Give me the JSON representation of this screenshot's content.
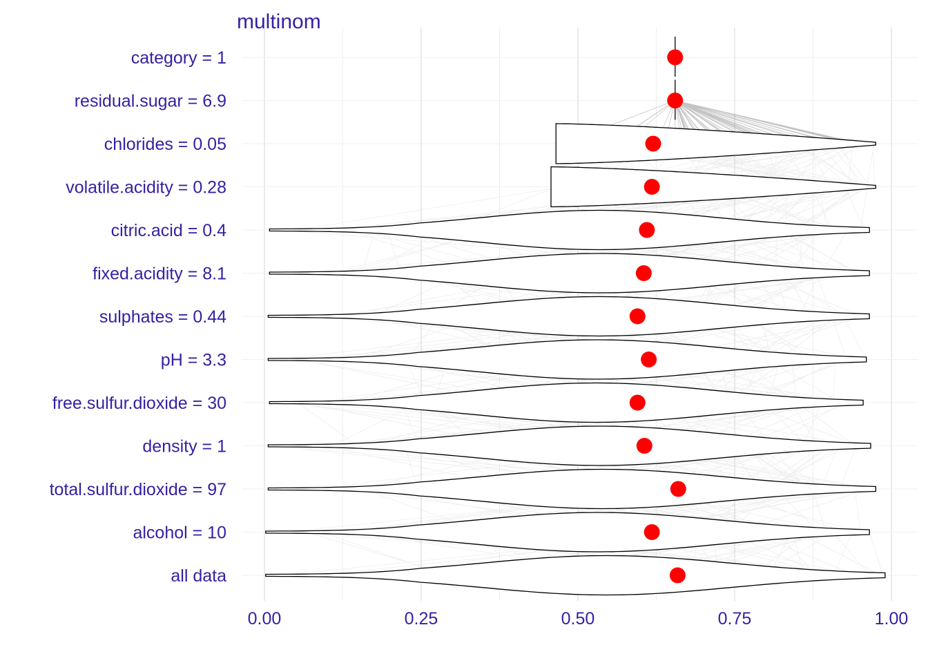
{
  "chart_data": {
    "type": "violin",
    "title": "multinom",
    "xlabel": "",
    "ylabel": "",
    "xlim": [
      0,
      1
    ],
    "x_ticks": [
      "0.00",
      "0.25",
      "0.50",
      "0.75",
      "1.00"
    ],
    "grid": true,
    "colors": {
      "text": "#371ea3",
      "point": "#ff0000",
      "outline": "#000000",
      "grid": "#e6e6e6"
    },
    "rows": [
      {
        "label": "category = 1",
        "mean": 0.655,
        "range": [
          0.655,
          0.655
        ]
      },
      {
        "label": "residual.sugar = 6.9",
        "mean": 0.655,
        "range": [
          0.655,
          0.655
        ]
      },
      {
        "label": "chlorides = 0.05",
        "mean": 0.62,
        "range": [
          0.465,
          0.975
        ]
      },
      {
        "label": "volatile.acidity = 0.28",
        "mean": 0.618,
        "range": [
          0.457,
          0.975
        ]
      },
      {
        "label": "citric.acid = 0.4",
        "mean": 0.61,
        "range": [
          0.008,
          0.965
        ]
      },
      {
        "label": "fixed.acidity = 8.1",
        "mean": 0.605,
        "range": [
          0.008,
          0.965
        ]
      },
      {
        "label": "sulphates = 0.44",
        "mean": 0.595,
        "range": [
          0.006,
          0.965
        ]
      },
      {
        "label": "pH = 3.3",
        "mean": 0.613,
        "range": [
          0.006,
          0.96
        ]
      },
      {
        "label": "free.sulfur.dioxide = 30",
        "mean": 0.595,
        "range": [
          0.008,
          0.955
        ]
      },
      {
        "label": "density = 1",
        "mean": 0.606,
        "range": [
          0.006,
          0.967
        ]
      },
      {
        "label": "total.sulfur.dioxide = 97",
        "mean": 0.66,
        "range": [
          0.006,
          0.975
        ]
      },
      {
        "label": "alcohol = 10",
        "mean": 0.618,
        "range": [
          0.002,
          0.965
        ]
      },
      {
        "label": "all data",
        "mean": 0.659,
        "range": [
          0.002,
          0.99
        ]
      }
    ]
  }
}
